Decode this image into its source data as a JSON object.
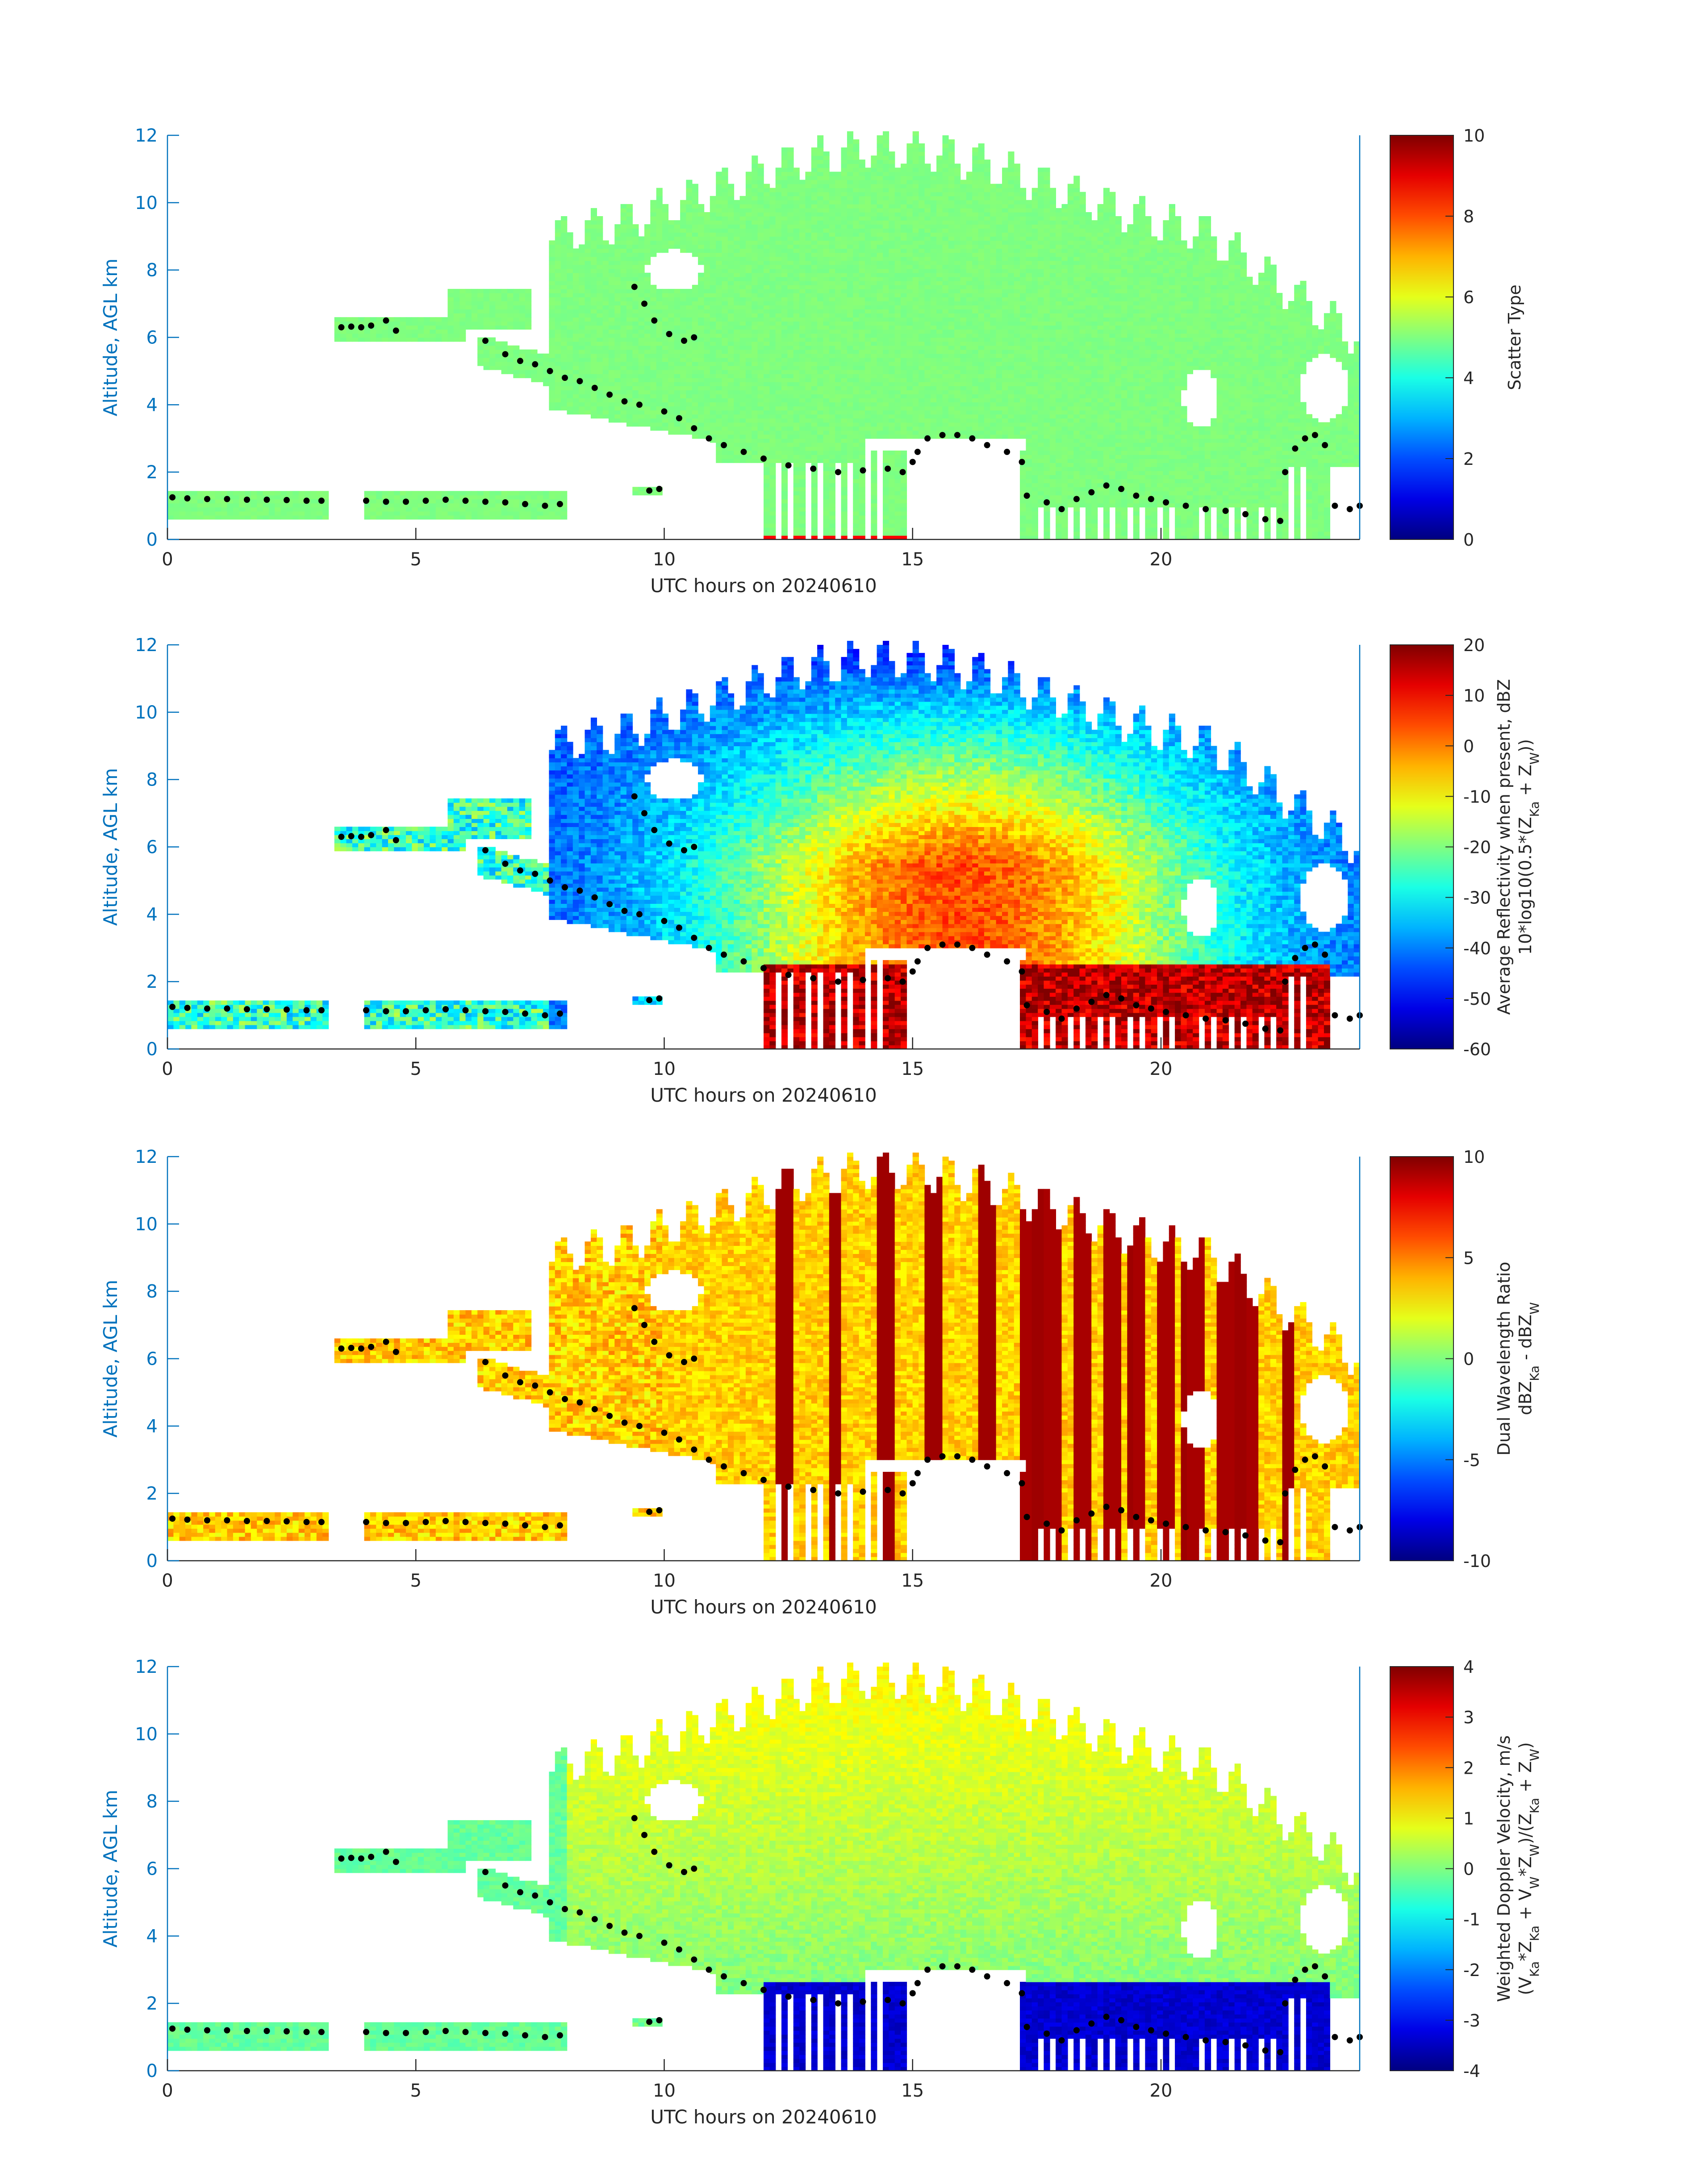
{
  "chart_data": [
    {
      "type": "heatmap",
      "xlabel": "UTC hours on 20240610",
      "ylabel": "Altitude, AGL km",
      "xlim": [
        0,
        24
      ],
      "ylim": [
        0,
        12
      ],
      "xticks": [
        0,
        5,
        10,
        15,
        20
      ],
      "yticks": [
        0,
        2,
        4,
        6,
        8,
        10,
        12
      ],
      "colorbar": {
        "label_lines": [
          "Scatter Type"
        ],
        "range": [
          0,
          10
        ],
        "ticks": [
          "0",
          "2",
          "4",
          "6",
          "8",
          "10"
        ],
        "colormap": "jet"
      },
      "field": "scatter"
    },
    {
      "type": "heatmap",
      "xlabel": "UTC hours on 20240610",
      "ylabel": "Altitude, AGL km",
      "xlim": [
        0,
        24
      ],
      "ylim": [
        0,
        12
      ],
      "xticks": [
        0,
        5,
        10,
        15,
        20
      ],
      "yticks": [
        0,
        2,
        4,
        6,
        8,
        10,
        12
      ],
      "colorbar": {
        "label_lines": [
          "Average Reflectivity when present, dBZ",
          "10*log10(0.5*(Z_Ka + Z_W))"
        ],
        "range": [
          -60,
          20
        ],
        "ticks": [
          "-60",
          "-50",
          "-40",
          "-30",
          "-20",
          "-10",
          "0",
          "10",
          "20"
        ],
        "colormap": "jet"
      },
      "field": "reflectivity"
    },
    {
      "type": "heatmap",
      "xlabel": "UTC hours on 20240610",
      "ylabel": "Altitude, AGL km",
      "xlim": [
        0,
        24
      ],
      "ylim": [
        0,
        12
      ],
      "xticks": [
        0,
        5,
        10,
        15,
        20
      ],
      "yticks": [
        0,
        2,
        4,
        6,
        8,
        10,
        12
      ],
      "colorbar": {
        "label_lines": [
          "Dual Wavelength Ratio",
          "dBZ_Ka - dBZ_W"
        ],
        "range": [
          -10,
          10
        ],
        "ticks": [
          "-10",
          "-5",
          "0",
          "5",
          "10"
        ],
        "colormap": "jet"
      },
      "field": "dwr"
    },
    {
      "type": "heatmap",
      "xlabel": "UTC hours on 20240610",
      "ylabel": "Altitude, AGL km",
      "xlim": [
        0,
        24
      ],
      "ylim": [
        0,
        12
      ],
      "xticks": [
        0,
        5,
        10,
        15,
        20
      ],
      "yticks": [
        0,
        2,
        4,
        6,
        8,
        10,
        12
      ],
      "colorbar": {
        "label_lines": [
          "Weighted Doppler Velocity, m/s",
          "(V_Ka*Z_Ka + V_W*Z_W)/(Z_Ka + Z_W)"
        ],
        "range": [
          -4,
          4
        ],
        "ticks": [
          "-4",
          "-3",
          "-2",
          "-1",
          "0",
          "1",
          "2",
          "3",
          "4"
        ],
        "colormap": "jet"
      },
      "field": "velocity"
    }
  ],
  "cloud_base_points": [
    [
      0.1,
      1.25
    ],
    [
      0.4,
      1.22
    ],
    [
      0.8,
      1.2
    ],
    [
      1.2,
      1.2
    ],
    [
      1.6,
      1.18
    ],
    [
      2.0,
      1.18
    ],
    [
      2.4,
      1.17
    ],
    [
      2.8,
      1.15
    ],
    [
      3.1,
      1.15
    ],
    [
      3.5,
      6.3
    ],
    [
      3.7,
      6.32
    ],
    [
      3.9,
      6.3
    ],
    [
      4.1,
      6.35
    ],
    [
      4.4,
      6.5
    ],
    [
      4.6,
      6.2
    ],
    [
      4.0,
      1.15
    ],
    [
      4.4,
      1.12
    ],
    [
      4.8,
      1.12
    ],
    [
      5.2,
      1.15
    ],
    [
      5.6,
      1.18
    ],
    [
      6.0,
      1.15
    ],
    [
      6.4,
      1.12
    ],
    [
      6.8,
      1.1
    ],
    [
      7.2,
      1.05
    ],
    [
      7.6,
      1.0
    ],
    [
      7.9,
      1.05
    ],
    [
      6.4,
      5.9
    ],
    [
      6.8,
      5.5
    ],
    [
      7.1,
      5.3
    ],
    [
      7.4,
      5.2
    ],
    [
      7.7,
      5.0
    ],
    [
      8.0,
      4.8
    ],
    [
      8.3,
      4.7
    ],
    [
      8.6,
      4.5
    ],
    [
      8.9,
      4.3
    ],
    [
      9.2,
      4.1
    ],
    [
      9.5,
      4.0
    ],
    [
      9.4,
      7.5
    ],
    [
      9.6,
      7.0
    ],
    [
      9.8,
      6.5
    ],
    [
      10.1,
      6.1
    ],
    [
      10.4,
      5.9
    ],
    [
      10.6,
      6.0
    ],
    [
      9.7,
      1.45
    ],
    [
      9.9,
      1.5
    ],
    [
      10.0,
      3.8
    ],
    [
      10.3,
      3.6
    ],
    [
      10.6,
      3.3
    ],
    [
      10.9,
      3.0
    ],
    [
      11.2,
      2.8
    ],
    [
      11.6,
      2.6
    ],
    [
      12.0,
      2.4
    ],
    [
      12.5,
      2.2
    ],
    [
      13.0,
      2.1
    ],
    [
      13.5,
      2.0
    ],
    [
      14.0,
      2.05
    ],
    [
      14.5,
      2.1
    ],
    [
      15.0,
      2.3
    ],
    [
      14.8,
      2.0
    ],
    [
      15.1,
      2.6
    ],
    [
      15.3,
      3.0
    ],
    [
      15.6,
      3.1
    ],
    [
      15.9,
      3.1
    ],
    [
      16.2,
      3.0
    ],
    [
      16.5,
      2.8
    ],
    [
      16.9,
      2.6
    ],
    [
      17.2,
      2.3
    ],
    [
      17.3,
      1.3
    ],
    [
      17.7,
      1.1
    ],
    [
      18.0,
      0.9
    ],
    [
      18.3,
      1.2
    ],
    [
      18.6,
      1.4
    ],
    [
      18.9,
      1.6
    ],
    [
      19.2,
      1.5
    ],
    [
      19.5,
      1.3
    ],
    [
      19.8,
      1.2
    ],
    [
      20.1,
      1.1
    ],
    [
      20.5,
      1.0
    ],
    [
      20.9,
      0.9
    ],
    [
      21.3,
      0.85
    ],
    [
      21.7,
      0.75
    ],
    [
      22.1,
      0.6
    ],
    [
      22.4,
      0.55
    ],
    [
      22.5,
      2.0
    ],
    [
      22.7,
      2.7
    ],
    [
      22.9,
      3.0
    ],
    [
      23.1,
      3.1
    ],
    [
      23.3,
      2.8
    ],
    [
      23.5,
      1.0
    ],
    [
      23.8,
      0.9
    ],
    [
      24.0,
      1.0
    ]
  ]
}
